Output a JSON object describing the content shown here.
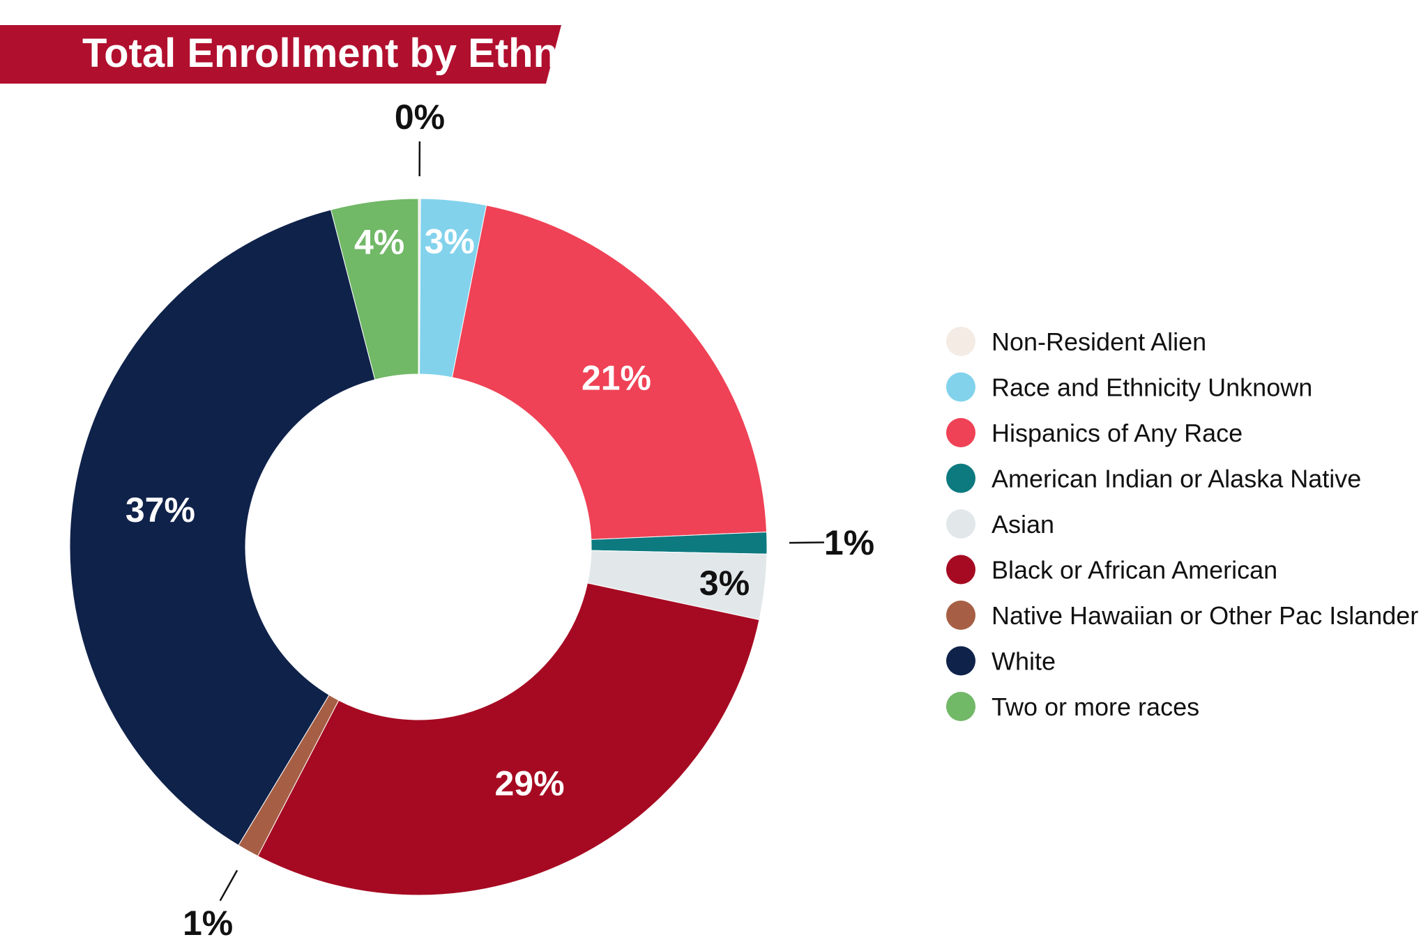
{
  "chart_data": {
    "type": "pie",
    "title": "Total Enrollment by Ethnicity",
    "categories": [
      "Non-Resident Alien",
      "Race and Ethnicity Unknown",
      "Hispanics of Any Race",
      "American Indian or Alaska Native",
      "Asian",
      "Black or African American",
      "Native Hawaiian or Other Pac Islander",
      "White",
      "Two or more races"
    ],
    "values": [
      0.1,
      3,
      21,
      1,
      3,
      29,
      1,
      37,
      4
    ],
    "labels": [
      "0%",
      "3%",
      "21%",
      "1%",
      "3%",
      "29%",
      "1%",
      "37%",
      "4%"
    ],
    "colors": [
      "#f3ebe4",
      "#82d2ec",
      "#ef4256",
      "#0d7a80",
      "#e2e8ea",
      "#a60a22",
      "#a65f45",
      "#0f224a",
      "#71b867"
    ],
    "label_colors": [
      "#111111",
      "#ffffff",
      "#ffffff",
      "#111111",
      "#111111",
      "#ffffff",
      "#111111",
      "#ffffff",
      "#ffffff"
    ],
    "legend_position": "right",
    "title_banner_color": "#b10f2e"
  }
}
